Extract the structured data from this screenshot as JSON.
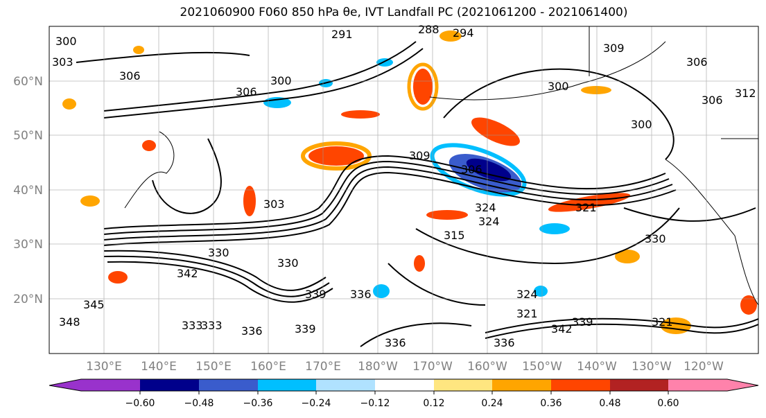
{
  "title_text": "2021060900 F060 850 hPa θe, IVT Landfall PC (2021061200 - 2021061400)",
  "map": {
    "lat_labels": [
      "60°N",
      "50°N",
      "40°N",
      "30°N",
      "20°N"
    ],
    "lon_labels": [
      "130°E",
      "140°E",
      "150°E",
      "160°E",
      "170°E",
      "180°W",
      "170°W",
      "160°W",
      "150°W",
      "140°W",
      "130°W",
      "120°W"
    ],
    "contour_labels": [
      "291",
      "288",
      "294",
      "300",
      "303",
      "306",
      "306",
      "300",
      "300",
      "309",
      "306",
      "312",
      "306",
      "303",
      "306",
      "309",
      "300",
      "321",
      "324",
      "330",
      "342",
      "345",
      "348",
      "339",
      "336",
      "333",
      "333",
      "336",
      "339",
      "336",
      "336",
      "330",
      "324",
      "321",
      "342",
      "339",
      "321",
      "315",
      "324",
      "330"
    ]
  },
  "colorbar": {
    "tick_labels": [
      "−0.60",
      "−0.48",
      "−0.36",
      "−0.24",
      "−0.12",
      "0.12",
      "0.24",
      "0.36",
      "0.48",
      "0.60"
    ],
    "colors": [
      "#9932cc",
      "#00008b",
      "#3a5ccc",
      "#00bfff",
      "#b0e2ff",
      "#ffffff",
      "#ffe680",
      "#ffa500",
      "#ff4500",
      "#b22222",
      "#ff82ab"
    ]
  }
}
